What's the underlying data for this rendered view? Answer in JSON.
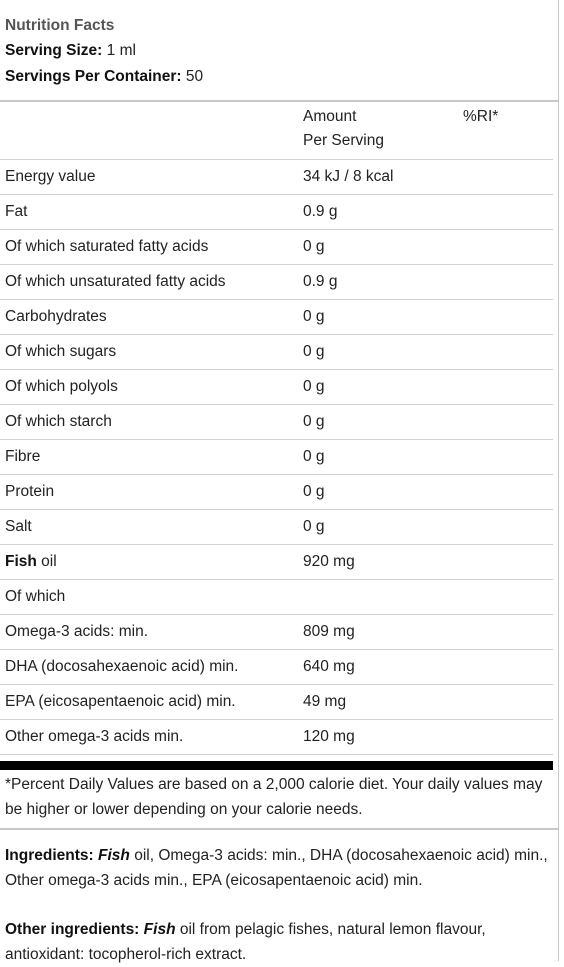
{
  "header": {
    "title": "Nutrition Facts",
    "serving_size_label": "Serving Size:",
    "serving_size_value": "1 ml",
    "servings_label": "Servings Per Container:",
    "servings_value": "50"
  },
  "table": {
    "col_amount_line1": "Amount",
    "col_amount_line2": "Per Serving",
    "col_ri": "%RI*",
    "rows": [
      {
        "name": "Energy value",
        "amount": "34 kJ / 8 kcal"
      },
      {
        "name": "Fat",
        "amount": "0.9 g"
      },
      {
        "name": "Of which saturated fatty acids",
        "amount": "0 g"
      },
      {
        "name": "Of which unsaturated fatty acids",
        "amount": "0.9 g"
      },
      {
        "name": "Carbohydrates",
        "amount": "0 g"
      },
      {
        "name": "Of which sugars",
        "amount": "0 g"
      },
      {
        "name": "Of which polyols",
        "amount": "0 g"
      },
      {
        "name": "Of which starch",
        "amount": "0 g"
      },
      {
        "name": "Fibre",
        "amount": "0 g"
      },
      {
        "name": "Protein",
        "amount": "0 g"
      },
      {
        "name": "Salt",
        "amount": "0 g"
      },
      {
        "name_bold": "Fish",
        "name_rest": " oil",
        "amount": "920 mg"
      },
      {
        "name": "Of which",
        "amount": ""
      },
      {
        "name": "Omega-3 acids: min.",
        "amount": "809 mg"
      },
      {
        "name": "DHA (docosahexaenoic acid) min.",
        "amount": "640 mg"
      },
      {
        "name": "EPA (eicosapentaenoic acid) min.",
        "amount": "49 mg"
      },
      {
        "name": "Other omega-3 acids min.",
        "amount": "120 mg"
      }
    ]
  },
  "footnote": "*Percent Daily Values are based on a 2,000 calorie diet. Your daily values may be higher or lower depending on your calorie needs.",
  "ingredients": {
    "label": "Ingredients:",
    "emphasis": "Fish",
    "text": " oil, Omega-3 acids: min., DHA (docosahexaenoic acid) min., Other omega-3 acids min., EPA (eicosapentaenoic acid) min."
  },
  "other_ingredients": {
    "label": "Other ingredients:",
    "emphasis": "Fish",
    "text": " oil from pelagic fishes, natural lemon flavour, antioxidant: tocopherol-rich extract."
  }
}
